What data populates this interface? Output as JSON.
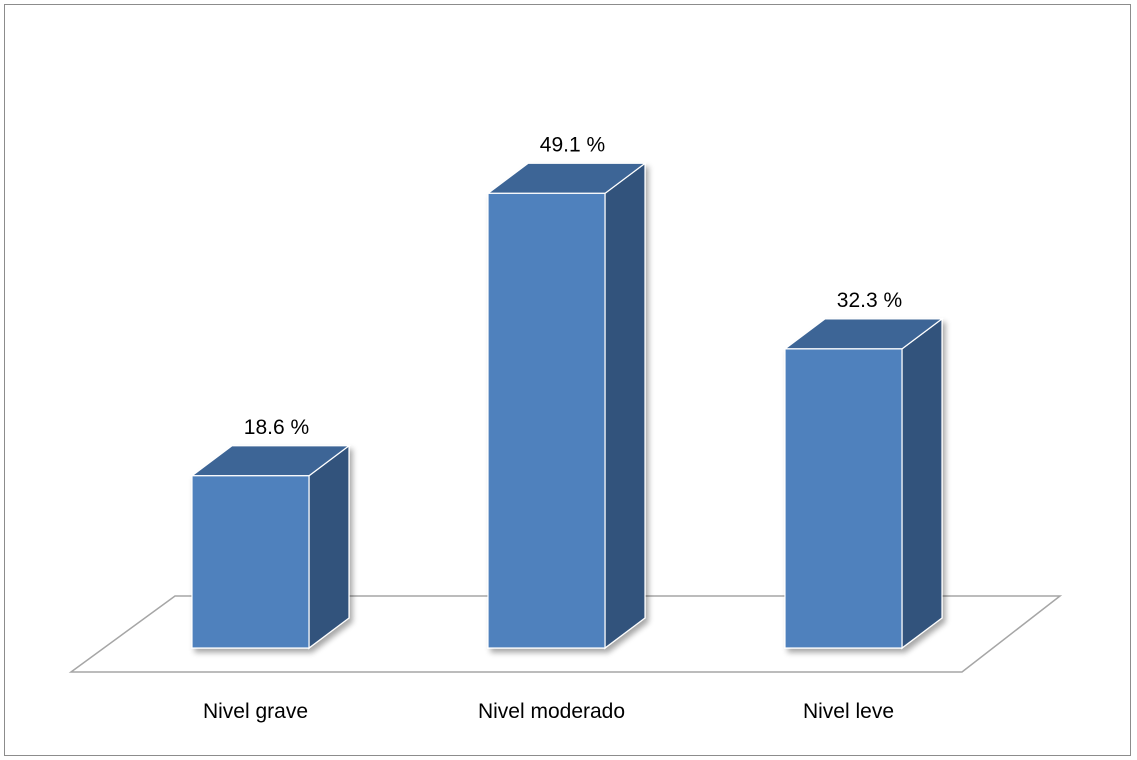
{
  "chart_data": {
    "type": "bar",
    "style": "3d-column",
    "categories": [
      "Nivel grave",
      "Nivel moderado",
      "Nivel leve"
    ],
    "values": [
      18.6,
      49.1,
      32.3
    ],
    "data_labels": [
      "18.6 %",
      "49.1 %",
      "32.3 %"
    ],
    "unit": "%",
    "title": "",
    "xlabel": "",
    "ylabel": "",
    "ylim": [
      0,
      60
    ],
    "grid": false,
    "legend": "none"
  },
  "colors": {
    "bar_front": "#4f81bd",
    "bar_side": "#31537c",
    "bar_top": "#3d6596",
    "floor_stroke": "#a6a6a6",
    "frame_border": "#8c8c8c"
  }
}
